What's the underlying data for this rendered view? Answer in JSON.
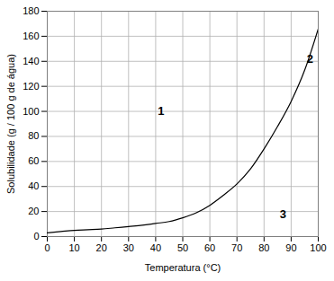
{
  "chart_data": {
    "type": "line",
    "x_label": "Temperatura (°C)",
    "y_label": "Solubilidade (g / 100 g de água)",
    "x": [
      0,
      5,
      10,
      15,
      20,
      25,
      30,
      35,
      40,
      45,
      50,
      55,
      60,
      65,
      70,
      75,
      80,
      85,
      90,
      95,
      100
    ],
    "values": [
      3,
      4,
      5,
      5.5,
      6,
      7,
      8,
      9,
      10.5,
      12,
      15,
      19,
      25,
      33,
      42,
      54,
      70,
      88,
      108,
      133,
      166
    ],
    "color": "#000000",
    "xlim": [
      0,
      100
    ],
    "xticks": [
      0,
      10,
      20,
      30,
      40,
      50,
      60,
      70,
      80,
      90,
      100
    ],
    "ylim": [
      0,
      180
    ],
    "yticks": [
      0,
      20,
      40,
      60,
      80,
      100,
      120,
      140,
      160,
      180
    ],
    "grid": true,
    "annotations": [
      {
        "text": "1",
        "x": 42,
        "y": 100
      },
      {
        "text": "2",
        "x": 97,
        "y": 142
      },
      {
        "text": "3",
        "x": 87,
        "y": 18
      }
    ]
  }
}
